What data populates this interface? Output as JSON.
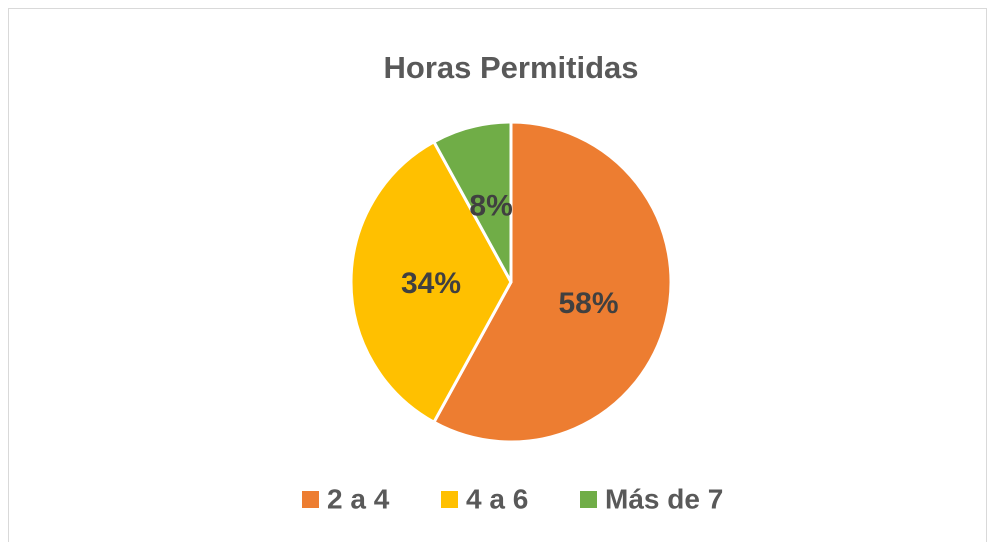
{
  "chart_data": {
    "type": "pie",
    "title": "Horas Permitidas",
    "categories": [
      "2 a 4",
      "4 a 6",
      "Más de 7"
    ],
    "values": [
      58,
      34,
      8
    ],
    "value_labels": [
      "58%",
      "34%",
      "8%"
    ],
    "colors": [
      "#ed7d31",
      "#ffc000",
      "#70ad47"
    ],
    "legend": "bottom"
  }
}
